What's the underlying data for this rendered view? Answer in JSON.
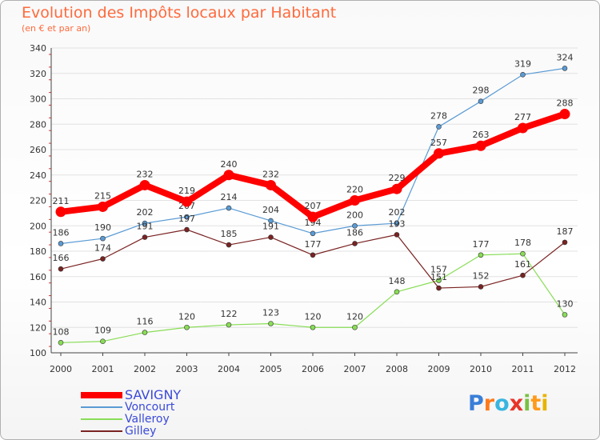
{
  "header": {
    "title": "Evolution des Impôts locaux par Habitant",
    "subtitle": "(en € et par an)"
  },
  "logo": {
    "letters": [
      "P",
      "r",
      "o",
      "x",
      "i",
      "t",
      "i"
    ],
    "colors": [
      "#3a7fd8",
      "#ff7a1a",
      "#38b6e0",
      "#e8332a",
      "#7ac142",
      "#ff9a1a",
      "#e8b400"
    ]
  },
  "chart_data": {
    "type": "line",
    "x": [
      "2000",
      "2001",
      "2002",
      "2003",
      "2004",
      "2005",
      "2006",
      "2007",
      "2008",
      "2009",
      "2010",
      "2011",
      "2012"
    ],
    "ylim": [
      100,
      340
    ],
    "yticks": [
      "100",
      "120",
      "140",
      "160",
      "180",
      "200",
      "220",
      "240",
      "260",
      "280",
      "300",
      "320",
      "340"
    ],
    "grid": true,
    "legend": "bottom-left",
    "series": [
      {
        "name": "Voncourt",
        "color": "#5a9bd4",
        "values": [
          186,
          190,
          202,
          207,
          214,
          204,
          194,
          200,
          202,
          278,
          298,
          319,
          324
        ]
      },
      {
        "name": "Valleroy",
        "color": "#88dd55",
        "values": [
          108,
          109,
          116,
          120,
          122,
          123,
          120,
          120,
          148,
          157,
          177,
          178,
          130
        ]
      },
      {
        "name": "Gilley",
        "color": "#7a2222",
        "values": [
          166,
          174,
          191,
          197,
          185,
          191,
          177,
          186,
          193,
          151,
          152,
          161,
          187
        ]
      },
      {
        "name": "SAVIGNY",
        "color": "#ff0000",
        "values": [
          211,
          215,
          232,
          219,
          240,
          232,
          207,
          220,
          229,
          257,
          263,
          277,
          288
        ]
      }
    ]
  }
}
